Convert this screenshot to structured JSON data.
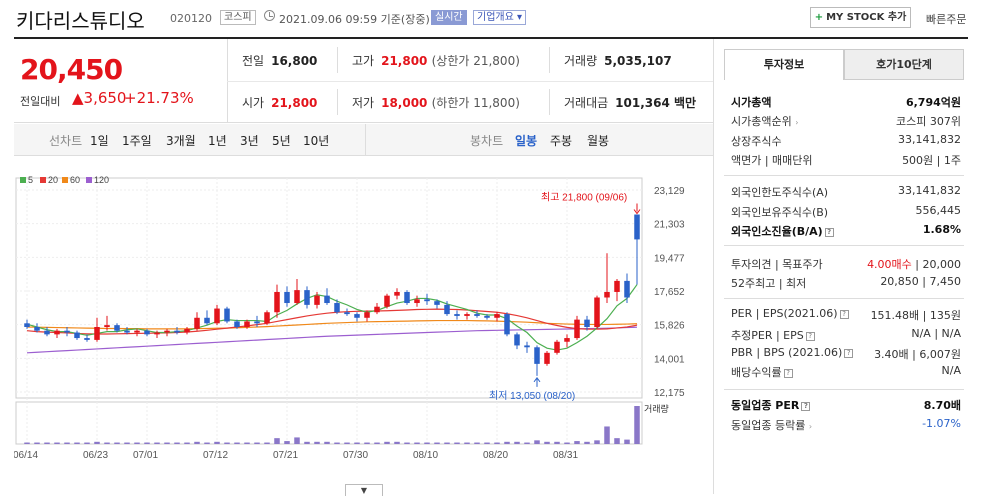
{
  "header": {
    "name": "키다리스튜디오",
    "code": "020120",
    "market": "코스피",
    "datetime": "2021.09.06 09:59 기준(장중)",
    "live": "실시간",
    "corp_info": "기업개요 ▾",
    "mystock": "MY STOCK 추가",
    "quick": "빠른주문"
  },
  "price": {
    "current": "20,450",
    "diff_label": "전일대비",
    "diff_value": "▲3,650",
    "diff_pct": "+21.73%"
  },
  "summary": {
    "prev": {
      "label": "전일",
      "value": "16,800"
    },
    "high": {
      "label": "고가",
      "value": "21,800",
      "sub": "(상한가 21,800)"
    },
    "volume": {
      "label": "거래량",
      "value": "5,035,107"
    },
    "open": {
      "label": "시가",
      "value": "21,800"
    },
    "low": {
      "label": "저가",
      "value": "18,000",
      "sub": "(하한가 11,800)"
    },
    "amount": {
      "label": "거래대금",
      "value": "101,364",
      "unit": "백만"
    }
  },
  "toolbar": {
    "line_label": "선차트",
    "periods": [
      "1일",
      "1주일",
      "3개월",
      "1년",
      "3년",
      "5년",
      "10년"
    ],
    "candle_label": "봉차트",
    "candles": [
      "일봉",
      "주봉",
      "월봉"
    ],
    "selected_candle": "일봉"
  },
  "colors": {
    "up": "#e3141b",
    "down": "#2a62c9",
    "ma5": "#4caf50",
    "ma20": "#e53935",
    "ma60": "#f0891a",
    "ma120": "#9c5fd0"
  },
  "chart_data": {
    "type": "candlestick",
    "legend": [
      "5",
      "20",
      "60",
      "120"
    ],
    "y_ticks": [
      23129,
      21303,
      19477,
      17652,
      15826,
      14001,
      12175
    ],
    "ylim": [
      12175,
      23129
    ],
    "x_labels": [
      "06/14",
      "06/23",
      "07/01",
      "07/12",
      "07/21",
      "07/30",
      "08/10",
      "08/20",
      "08/31"
    ],
    "max_annotation": "최고 21,800 (09/06)",
    "min_annotation": "최저 13,050 (08/20)",
    "volume_label": "거래량",
    "candles": [
      [
        15900,
        16100,
        15600,
        15700
      ],
      [
        15700,
        15900,
        15400,
        15500
      ],
      [
        15500,
        15700,
        15200,
        15300
      ],
      [
        15300,
        15600,
        15100,
        15500
      ],
      [
        15500,
        15700,
        15200,
        15400
      ],
      [
        15400,
        15500,
        15000,
        15100
      ],
      [
        15100,
        15300,
        14900,
        15000
      ],
      [
        15000,
        16200,
        14900,
        15700
      ],
      [
        15700,
        16300,
        15500,
        15800
      ],
      [
        15800,
        15900,
        15400,
        15500
      ],
      [
        15500,
        15700,
        15300,
        15400
      ],
      [
        15400,
        15600,
        15200,
        15500
      ],
      [
        15500,
        15600,
        15200,
        15300
      ],
      [
        15300,
        15500,
        15100,
        15400
      ],
      [
        15400,
        15600,
        15200,
        15500
      ],
      [
        15500,
        15700,
        15300,
        15400
      ],
      [
        15400,
        15700,
        15300,
        15600
      ],
      [
        15600,
        16500,
        15500,
        16200
      ],
      [
        16200,
        16600,
        15800,
        15900
      ],
      [
        15900,
        16900,
        15800,
        16700
      ],
      [
        16700,
        16800,
        15900,
        16000
      ],
      [
        16000,
        16100,
        15600,
        15700
      ],
      [
        15700,
        16100,
        15600,
        16000
      ],
      [
        16000,
        16300,
        15700,
        15900
      ],
      [
        15900,
        16600,
        15800,
        16500
      ],
      [
        16500,
        18000,
        16200,
        17600
      ],
      [
        17600,
        17900,
        16800,
        17000
      ],
      [
        17000,
        18300,
        16900,
        17700
      ],
      [
        17700,
        17900,
        16700,
        16900
      ],
      [
        16900,
        17600,
        16700,
        17400
      ],
      [
        17400,
        17800,
        16900,
        17000
      ],
      [
        17000,
        17200,
        16400,
        16500
      ],
      [
        16500,
        16700,
        16300,
        16400
      ],
      [
        16400,
        16500,
        16000,
        16200
      ],
      [
        16200,
        16600,
        16000,
        16500
      ],
      [
        16500,
        17000,
        16400,
        16800
      ],
      [
        16800,
        17500,
        16700,
        17400
      ],
      [
        17400,
        17800,
        17200,
        17600
      ],
      [
        17600,
        17700,
        16900,
        17000
      ],
      [
        17000,
        17400,
        16800,
        17200
      ],
      [
        17200,
        17500,
        16900,
        17100
      ],
      [
        17100,
        17200,
        16700,
        16900
      ],
      [
        16900,
        17100,
        16300,
        16400
      ],
      [
        16400,
        16600,
        16100,
        16300
      ],
      [
        16300,
        16500,
        16100,
        16400
      ],
      [
        16400,
        16600,
        16200,
        16300
      ],
      [
        16300,
        16400,
        16100,
        16200
      ],
      [
        16200,
        16500,
        16000,
        16400
      ],
      [
        16400,
        16500,
        15200,
        15300
      ],
      [
        15300,
        15400,
        14500,
        14700
      ],
      [
        14700,
        14900,
        14300,
        14600
      ],
      [
        14600,
        14700,
        13050,
        13700
      ],
      [
        13700,
        14400,
        13600,
        14300
      ],
      [
        14300,
        15000,
        14200,
        14900
      ],
      [
        14900,
        15300,
        14600,
        15100
      ],
      [
        15100,
        16300,
        15000,
        16100
      ],
      [
        16100,
        16300,
        15500,
        15700
      ],
      [
        15700,
        17400,
        15600,
        17300
      ],
      [
        17300,
        19700,
        17000,
        17600
      ],
      [
        17600,
        18300,
        17100,
        18200
      ],
      [
        18200,
        18600,
        17000,
        17300
      ],
      [
        21800,
        21800,
        18000,
        20450
      ]
    ],
    "volumes": [
      2,
      2,
      2,
      2,
      2,
      2,
      2,
      3,
      2,
      2,
      2,
      2,
      2,
      2,
      2,
      2,
      2,
      3,
      2,
      3,
      2,
      2,
      2,
      2,
      2,
      8,
      4,
      9,
      3,
      3,
      3,
      2,
      2,
      2,
      2,
      2,
      3,
      3,
      2,
      2,
      2,
      2,
      2,
      2,
      2,
      2,
      2,
      2,
      3,
      3,
      2,
      5,
      3,
      3,
      2,
      4,
      3,
      5,
      24,
      8,
      6,
      52
    ],
    "ma5": [
      15850,
      15700,
      15550,
      15450,
      15450,
      15350,
      15250,
      15350,
      15450,
      15450,
      15550,
      15600,
      15500,
      15400,
      15400,
      15450,
      15500,
      15650,
      15800,
      16000,
      16100,
      16050,
      16050,
      16050,
      16000,
      16350,
      16600,
      16950,
      17250,
      17450,
      17350,
      17100,
      16900,
      16650,
      16500,
      16600,
      16800,
      17000,
      17100,
      17250,
      17250,
      17150,
      16950,
      16800,
      16650,
      16450,
      16350,
      16350,
      16150,
      15750,
      15400,
      14850,
      14550,
      14450,
      14550,
      14850,
      15200,
      15650,
      16150,
      16850,
      17250,
      18000
    ],
    "ma20": [
      15500,
      15450,
      15420,
      15400,
      15380,
      15350,
      15330,
      15320,
      15320,
      15330,
      15340,
      15350,
      15360,
      15370,
      15380,
      15400,
      15430,
      15470,
      15520,
      15580,
      15640,
      15700,
      15760,
      15830,
      15900,
      16000,
      16100,
      16200,
      16300,
      16380,
      16450,
      16500,
      16530,
      16550,
      16560,
      16570,
      16580,
      16600,
      16620,
      16650,
      16660,
      16670,
      16660,
      16650,
      16620,
      16580,
      16540,
      16500,
      16420,
      16320,
      16200,
      16050,
      15900,
      15780,
      15680,
      15610,
      15580,
      15580,
      15600,
      15650,
      15700,
      15800
    ],
    "ma60": [
      15700,
      15690,
      15680,
      15670,
      15660,
      15650,
      15640,
      15630,
      15620,
      15620,
      15610,
      15610,
      15600,
      15600,
      15600,
      15600,
      15600,
      15610,
      15620,
      15630,
      15640,
      15660,
      15680,
      15700,
      15720,
      15750,
      15780,
      15810,
      15840,
      15870,
      15900,
      15920,
      15940,
      15960,
      15980,
      15990,
      16000,
      16010,
      16020,
      16030,
      16040,
      16050,
      16050,
      16050,
      16050,
      16040,
      16030,
      16020,
      16000,
      15980,
      15960,
      15930,
      15900,
      15880,
      15860,
      15850,
      15840,
      15840,
      15840,
      15850,
      15860,
      15880
    ],
    "ma120": [
      14300,
      14330,
      14360,
      14390,
      14420,
      14450,
      14480,
      14510,
      14540,
      14570,
      14600,
      14630,
      14660,
      14690,
      14720,
      14750,
      14780,
      14810,
      14840,
      14870,
      14900,
      14930,
      14960,
      14990,
      15020,
      15050,
      15080,
      15110,
      15140,
      15170,
      15200,
      15220,
      15240,
      15260,
      15280,
      15300,
      15320,
      15340,
      15360,
      15380,
      15400,
      15420,
      15440,
      15460,
      15480,
      15500,
      15510,
      15520,
      15530,
      15540,
      15550,
      15560,
      15570,
      15580,
      15590,
      15600,
      15610,
      15620,
      15630,
      15650,
      15670,
      15690
    ]
  },
  "side": {
    "tab_invest": "투자정보",
    "tab_quote": "호가10단계",
    "market_cap_label": "시가총액",
    "market_cap": "6,794억원",
    "cap_rank_label": "시가총액순위",
    "cap_rank": "코스피 307위",
    "shares_label": "상장주식수",
    "shares": "33,141,832",
    "par_label": "액면가 | 매매단위",
    "par": "500원 | 1주",
    "foreign_limit_label": "외국인한도주식수(A)",
    "foreign_limit": "33,141,832",
    "foreign_hold_label": "외국인보유주식수(B)",
    "foreign_hold": "556,445",
    "foreign_ratio_label": "외국인소진율(B/A)",
    "foreign_ratio": "1.68%",
    "opinion_label": "투자의견 | 목표주가",
    "opinion": "4.00매수",
    "target": "| 20,000",
    "w52_label": "52주최고 | 최저",
    "w52": "20,850 | 7,450",
    "per_label": "PER | EPS(2021.06)",
    "per": "151.48배 | 135원",
    "est_label": "추정PER | EPS",
    "est": "N/A | N/A",
    "pbr_label": "PBR | BPS (2021.06)",
    "pbr": "3.40배 | 6,007원",
    "div_label": "배당수익률",
    "div": "N/A",
    "sector_per_label": "동일업종 PER",
    "sector_per": "8.70배",
    "sector_rate_label": "동일업종 등락률",
    "sector_rate": "-1.07%"
  }
}
